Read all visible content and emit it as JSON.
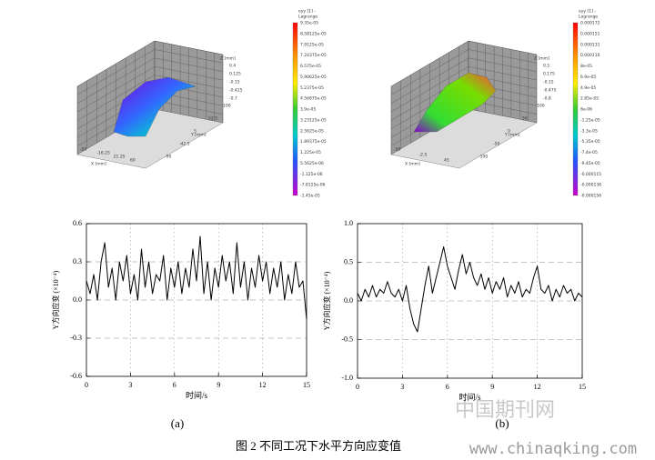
{
  "surface_plots": [
    {
      "colorbar_title": [
        "eyy [1] -",
        "Lagrange"
      ],
      "colorbar_labels": [
        "9.35e-05",
        "8.58125e-05",
        "7.9125e-05",
        "7.24375e-05",
        "6.575e-05",
        "5.90625e-05",
        "5.2375e-05",
        "4.56875e-05",
        "3.9e-05",
        "3.23125e-05",
        "2.5625e-05",
        "1.89375e-05",
        "1.225e-05",
        "5.5625e-06",
        "-1.125e-06",
        "-7.8125e-06",
        "-1.45e-05"
      ],
      "z_axis_label": "Z [mm]",
      "z_ticks": [
        "0.4",
        "0.125",
        "-0.15",
        "-0.425",
        "-0.7"
      ],
      "y_axis_label": "Y [mm]",
      "y_ticks": [
        "100",
        "52.5",
        "5",
        "-42.5",
        "-90"
      ],
      "x_axis_label": "X [mm]",
      "x_ticks": [
        "-55",
        "-16.25",
        "21.25",
        "60"
      ]
    },
    {
      "colorbar_title": [
        "eyy [1] -",
        "Lagrange"
      ],
      "colorbar_labels": [
        "0.000172",
        "0.000151",
        "0.000131",
        "0.000110",
        "8e-05",
        "6.9e-05",
        "4.9e-05",
        "2.85e-05",
        "8e-06",
        "-1.25e-05",
        "-3.3e-05",
        "-5.35e-05",
        "-7.4e-05",
        "-9.45e-05",
        "-0.000115",
        "-0.000136",
        "-0.000156"
      ],
      "z_axis_label": "Z [mm]",
      "z_ticks": [
        "0.5",
        "0.175",
        "-0.15",
        "-0.475",
        "-0.8"
      ],
      "y_axis_label": "Y [mm]",
      "y_ticks": [
        "100",
        "50",
        "0",
        "-50",
        "-100"
      ],
      "x_axis_label": "X [mm]",
      "x_ticks": [
        "-50",
        "-2.5",
        "45"
      ]
    }
  ],
  "chart_data": [
    {
      "type": "line",
      "x_label": "时间/s",
      "y_label": "Y方向应变 (×10⁻⁴)",
      "panel": "(a)",
      "xlim": [
        0,
        15
      ],
      "xticks": [
        0,
        3,
        6,
        9,
        12,
        15
      ],
      "ylim": [
        -0.6,
        0.6
      ],
      "yticks": [
        -0.6,
        -0.3,
        {
          "value": 0,
          "label": "0.0"
        },
        0.3,
        0.6
      ],
      "grid": true,
      "color": "#000000",
      "x": [
        0,
        0.25,
        0.5,
        0.75,
        1,
        1.25,
        1.5,
        1.75,
        2,
        2.25,
        2.5,
        2.75,
        3,
        3.25,
        3.5,
        3.75,
        4,
        4.25,
        4.5,
        4.75,
        5,
        5.25,
        5.5,
        5.75,
        6,
        6.25,
        6.5,
        6.75,
        7,
        7.25,
        7.5,
        7.75,
        8,
        8.25,
        8.5,
        8.75,
        9,
        9.25,
        9.5,
        9.75,
        10,
        10.25,
        10.5,
        10.75,
        11,
        11.25,
        11.5,
        11.75,
        12,
        12.25,
        12.5,
        12.75,
        13,
        13.25,
        13.5,
        13.75,
        14,
        14.25,
        14.5,
        14.75,
        15
      ],
      "values": [
        0.15,
        0.05,
        0.2,
        0,
        0.3,
        0.45,
        0.1,
        0.25,
        0,
        0.3,
        0.15,
        0.35,
        0.05,
        0.2,
        0,
        0.4,
        0.1,
        0.3,
        0.05,
        0.2,
        0.15,
        0.35,
        0,
        0.25,
        0.1,
        0.3,
        0.05,
        0.25,
        0.1,
        0.4,
        0.15,
        0.5,
        0.05,
        0.3,
        0,
        0.25,
        0.1,
        0.35,
        0.15,
        0.3,
        0.05,
        0.45,
        0.1,
        0.3,
        0,
        0.25,
        0.1,
        0.35,
        0.15,
        0.3,
        0.05,
        0.25,
        0.1,
        0.3,
        0,
        0.2,
        0.05,
        0.3,
        0.1,
        0.15,
        -0.15
      ]
    },
    {
      "type": "line",
      "x_label": "时间/s",
      "y_label": "Y方向应变 (×10⁻⁴)",
      "panel": "(b)",
      "xlim": [
        0,
        15
      ],
      "xticks": [
        0,
        3,
        6,
        9,
        12,
        15
      ],
      "ylim": [
        -1,
        1
      ],
      "yticks": [
        {
          "value": -1,
          "label": "-1.0"
        },
        -0.5,
        {
          "value": 0,
          "label": "0.0"
        },
        0.5,
        {
          "value": 1,
          "label": "1.0"
        }
      ],
      "grid": true,
      "color": "#000000",
      "x": [
        0,
        0.25,
        0.5,
        0.75,
        1,
        1.25,
        1.5,
        1.75,
        2,
        2.25,
        2.5,
        2.75,
        3,
        3.25,
        3.5,
        3.75,
        4,
        4.25,
        4.5,
        4.75,
        5,
        5.25,
        5.5,
        5.75,
        6,
        6.25,
        6.5,
        6.75,
        7,
        7.25,
        7.5,
        7.75,
        8,
        8.25,
        8.5,
        8.75,
        9,
        9.25,
        9.5,
        9.75,
        10,
        10.25,
        10.5,
        10.75,
        11,
        11.25,
        11.5,
        11.75,
        12,
        12.25,
        12.5,
        12.75,
        13,
        13.25,
        13.5,
        13.75,
        14,
        14.25,
        14.5,
        14.75,
        15
      ],
      "values": [
        0.1,
        0,
        0.15,
        0.05,
        0.2,
        0.05,
        0.15,
        0.1,
        0.25,
        0.1,
        0.05,
        0.15,
        0,
        0.2,
        -0.1,
        -0.3,
        -0.4,
        -0.1,
        0.2,
        0.45,
        0.1,
        0.3,
        0.5,
        0.7,
        0.45,
        0.3,
        0.15,
        0.4,
        0.6,
        0.35,
        0.5,
        0.3,
        0.2,
        0.35,
        0.15,
        0.3,
        0.1,
        0.25,
        0.15,
        0.3,
        0.05,
        0.2,
        0.1,
        0.25,
        0.05,
        0.15,
        0.1,
        0.3,
        0.45,
        0.15,
        0.1,
        0.2,
        0,
        0.15,
        0.05,
        0.2,
        0.1,
        0.15,
        0,
        0.1,
        0.05
      ]
    }
  ],
  "caption": "图 2  不同工况下水平方向应变值",
  "watermark": [
    "中国期刊网",
    "www.chinaqking.com"
  ]
}
